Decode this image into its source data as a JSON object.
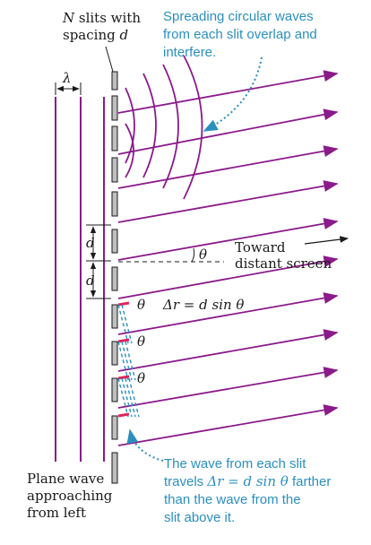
{
  "labels": {
    "slits_line1_a": "N",
    "slits_line1_b": " slits with",
    "slits_line2_a": "spacing ",
    "slits_line2_b": "d",
    "lambda": "λ",
    "d_upper": "d",
    "d_lower": "d",
    "theta_main": "θ",
    "toward_line1": "Toward",
    "toward_line2": "distant screen",
    "theta_1": "θ",
    "theta_2": "θ",
    "theta_3": "θ",
    "delta_r_eq": "Δr = d sin θ",
    "plane_wave_1": "Plane wave",
    "plane_wave_2": "approaching",
    "plane_wave_3": "from left"
  },
  "notes": {
    "spreading_1": "Spreading circular waves",
    "spreading_2": "from each slit overlap and",
    "spreading_3": "interfere.",
    "travel_1": "The wave from each slit",
    "travel_2a": "travels ",
    "travel_2b": "Δr = d sin θ",
    "travel_2c": " farther",
    "travel_3": "than the wave from the",
    "travel_4": "slit above it."
  },
  "colors": {
    "wave": "#8b1a8b",
    "note": "#2a8fbf",
    "slit_fill": "#bfbfbf",
    "marker": "#e0245e"
  }
}
